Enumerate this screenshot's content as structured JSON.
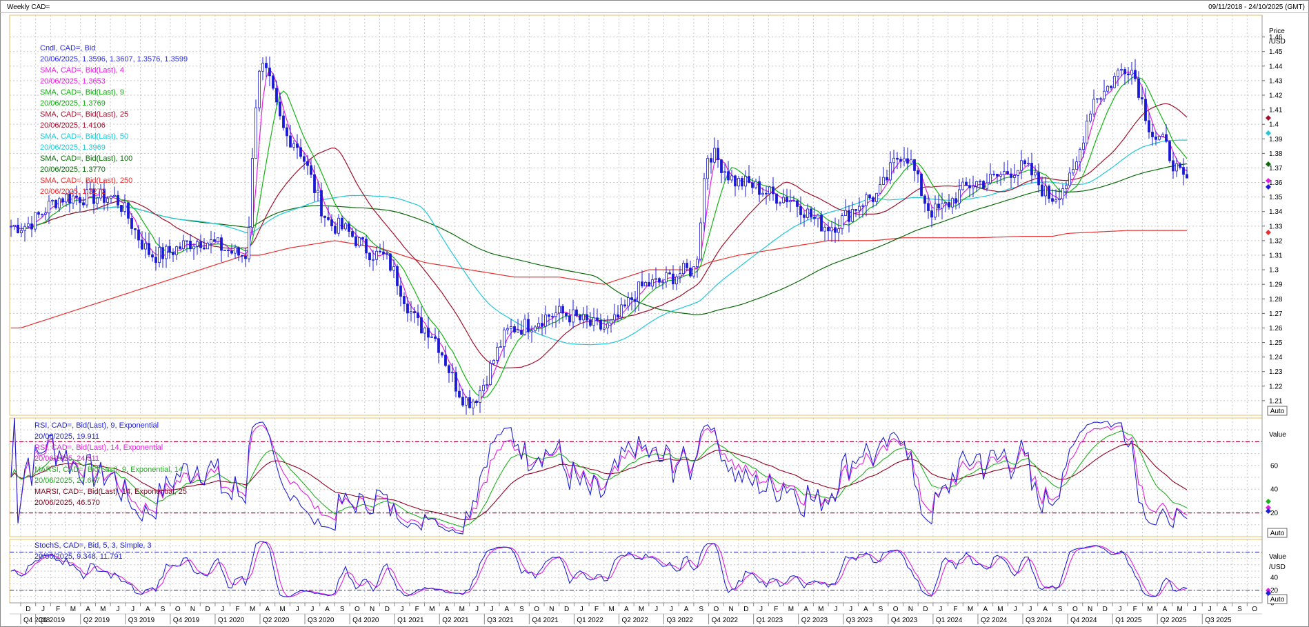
{
  "header": {
    "title": "Weekly CAD=",
    "date_range": "09/11/2018 - 24/10/2025 (GMT)"
  },
  "colors": {
    "candle": "#1a1ad6",
    "sma4": "#e21ee0",
    "sma9": "#12b412",
    "sma25": "#a0102a",
    "sma50": "#22c8d8",
    "sma100": "#0a6a0a",
    "sma250": "#e83030",
    "rsi9": "#2020d0",
    "rsi14": "#e020e0",
    "marsi9": "#20b020",
    "marsi14": "#900020",
    "stoch_k": "#2020d0",
    "stoch_d": "#e020e0",
    "level_line": "#b00040",
    "grid": "#c8c8c8",
    "frame": "#e8c060"
  },
  "price_panel": {
    "axis_title_1": "Price",
    "axis_title_2": "/USD",
    "auto_label": "Auto",
    "y_ticks": [
      "1.46",
      "1.45",
      "1.44",
      "1.43",
      "1.42",
      "1.41",
      "1.4",
      "1.39",
      "1.38",
      "1.37",
      "1.36",
      "1.35",
      "1.34",
      "1.33",
      "1.32",
      "1.31",
      "1.3",
      "1.29",
      "1.28",
      "1.27",
      "1.26",
      "1.25",
      "1.24",
      "1.23",
      "1.22",
      "1.21"
    ],
    "ylim": [
      1.2,
      1.475
    ],
    "legend": [
      {
        "name": "Cndl, CAD=, Bid",
        "value": "20/06/2025, 1.3596, 1.3607, 1.3576, 1.3599",
        "color": "#2a2ae0"
      },
      {
        "name": "SMA, CAD=, Bid(Last), 4",
        "value": "20/06/2025, 1.3653",
        "color": "#e21ee0"
      },
      {
        "name": "SMA, CAD=, Bid(Last), 9",
        "value": "20/06/2025, 1.3769",
        "color": "#12a812"
      },
      {
        "name": "SMA, CAD=, Bid(Last), 25",
        "value": "20/06/2025, 1.4106",
        "color": "#a0102a"
      },
      {
        "name": "SMA, CAD=, Bid(Last), 50",
        "value": "20/06/2025, 1.3969",
        "color": "#22c8d8"
      },
      {
        "name": "SMA, CAD=, Bid(Last), 100",
        "value": "20/06/2025, 1.3770",
        "color": "#0a6a0a"
      },
      {
        "name": "SMA, CAD=, Bid(Last), 250",
        "value": "20/06/2025, 1.3272",
        "color": "#e83030"
      }
    ]
  },
  "rsi_panel": {
    "axis_title": "Value",
    "auto_label": "Auto",
    "y_ticks": [
      "60",
      "40",
      "20"
    ],
    "ylim": [
      0,
      100
    ],
    "levels": [
      80,
      20
    ],
    "legend": [
      {
        "name": "RSI, CAD=, Bid(Last), 9, Exponential",
        "value": "20/06/2025, 19.911",
        "color": "#2020d0"
      },
      {
        "name": "RSI, CAD=, Bid(Last), 14, Exponential",
        "value": "20/06/2025, 24.311",
        "color": "#e020e0"
      },
      {
        "name": "MARSI, CAD=, Bid(Last), 9, Exponential, 14",
        "value": "20/06/2025, 27.667",
        "color": "#20b020"
      },
      {
        "name": "MARSI, CAD=, Bid(Last), 14, Exponential, 25",
        "value": "20/06/2025, 46.570",
        "color": "#900020"
      }
    ]
  },
  "stoch_panel": {
    "axis_title_1": "Value",
    "axis_title_2": "/USD",
    "auto_label": "Auto",
    "y_ticks": [
      "40",
      "20",
      "0"
    ],
    "ylim": [
      0,
      100
    ],
    "levels": [
      80,
      20
    ],
    "legend": [
      {
        "name": "StochS, CAD=, Bid, 5, 3, Simple, 3",
        "value": "20/06/2025, 9.348, 11.791",
        "color": "#2020d0"
      }
    ],
    "legend_value_extra": "11.791"
  },
  "x_axis": {
    "months": [
      "D",
      "J",
      "F",
      "M",
      "A",
      "M",
      "J",
      "J",
      "A",
      "S",
      "O",
      "N",
      "D",
      "J",
      "F",
      "M",
      "A",
      "M",
      "J",
      "J",
      "A",
      "S",
      "O",
      "N",
      "D",
      "J",
      "F",
      "M",
      "A",
      "M",
      "J",
      "J",
      "A",
      "S",
      "O",
      "N",
      "D",
      "J",
      "F",
      "M",
      "A",
      "M",
      "J",
      "J",
      "A",
      "S",
      "O",
      "N",
      "D",
      "J",
      "F",
      "M",
      "A",
      "M",
      "J",
      "J",
      "A",
      "S",
      "O",
      "N",
      "D",
      "J",
      "F",
      "M",
      "A",
      "M",
      "J",
      "J",
      "A",
      "S",
      "O",
      "N",
      "D",
      "J",
      "F",
      "M",
      "A",
      "M",
      "J",
      "J",
      "A",
      "S",
      "O"
    ],
    "quarters": [
      "Q4 2018",
      "Q1 2019",
      "Q2 2019",
      "Q3 2019",
      "Q4 2019",
      "Q1 2020",
      "Q2 2020",
      "Q3 2020",
      "Q4 2020",
      "Q1 2021",
      "Q2 2021",
      "Q3 2021",
      "Q4 2021",
      "Q1 2022",
      "Q2 2022",
      "Q3 2022",
      "Q4 2022",
      "Q1 2023",
      "Q2 2023",
      "Q3 2023",
      "Q4 2023",
      "Q1 2024",
      "Q2 2024",
      "Q3 2024",
      "Q4 2024",
      "Q1 2025",
      "Q2 2025",
      "Q3 2025"
    ]
  },
  "chart_data": {
    "type": "line",
    "title": "Weekly CAD=",
    "x": [
      "2018-12",
      "2019-03",
      "2019-06",
      "2019-09",
      "2019-12",
      "2020-03",
      "2020-04",
      "2020-06",
      "2020-09",
      "2020-12",
      "2021-03",
      "2021-06",
      "2021-09",
      "2021-12",
      "2022-03",
      "2022-06",
      "2022-09",
      "2022-10",
      "2022-12",
      "2023-03",
      "2023-06",
      "2023-09",
      "2023-11",
      "2024-01",
      "2024-04",
      "2024-07",
      "2024-09",
      "2024-10",
      "2024-12",
      "2025-02",
      "2025-04",
      "2025-06"
    ],
    "series": [
      {
        "name": "Cndl, CAD=, Bid",
        "values": [
          1.33,
          1.35,
          1.35,
          1.31,
          1.32,
          1.31,
          1.44,
          1.39,
          1.33,
          1.31,
          1.26,
          1.21,
          1.26,
          1.27,
          1.26,
          1.29,
          1.3,
          1.38,
          1.36,
          1.35,
          1.33,
          1.35,
          1.38,
          1.34,
          1.36,
          1.37,
          1.35,
          1.36,
          1.42,
          1.44,
          1.39,
          1.36
        ]
      },
      {
        "name": "SMA, CAD=, Bid(Last), 250",
        "values": [
          1.26,
          1.27,
          1.28,
          1.29,
          1.3,
          1.31,
          1.31,
          1.315,
          1.32,
          1.315,
          1.305,
          1.3,
          1.295,
          1.295,
          1.29,
          1.3,
          1.3,
          1.305,
          1.31,
          1.315,
          1.32,
          1.32,
          1.322,
          1.322,
          1.322,
          1.323,
          1.323,
          1.325,
          1.326,
          1.327,
          1.327,
          1.327
        ]
      }
    ],
    "ylabel": "Price /USD",
    "ylim": [
      1.2,
      1.475
    ]
  }
}
